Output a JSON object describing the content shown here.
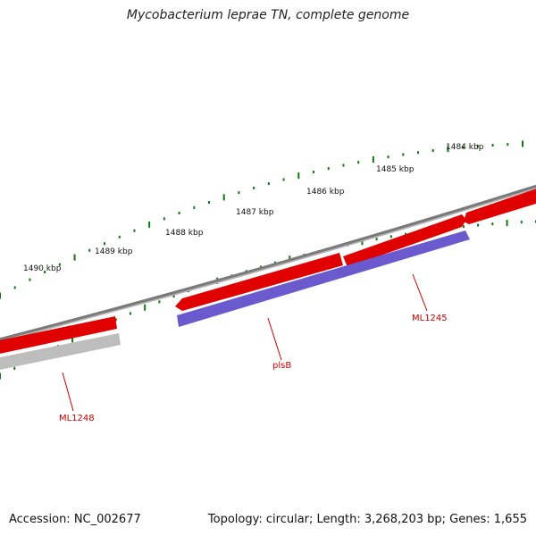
{
  "title": "Mycobacterium leprae TN, complete genome",
  "footer": {
    "accession": "Accession: NC_002677",
    "stats": "Topology: circular; Length: 3,268,203 bp; Genes: 1,655"
  },
  "colors": {
    "backbone": "#7a7a7a",
    "forward_gene": "#e00000",
    "reverse_gene": "#6a5acd",
    "pseudo_gene": "#bdbdbd",
    "tick": "#117711",
    "label": "#cc0000"
  },
  "ruler": {
    "labels": [
      "1484 kbp",
      "1485 kbp",
      "1486 kbp",
      "1487 kbp",
      "1488 kbp",
      "1489 kbp",
      "1490 kbp"
    ]
  },
  "genes": [
    {
      "label": "ML1248"
    },
    {
      "label": "plsB"
    },
    {
      "label": "ML1245"
    }
  ]
}
